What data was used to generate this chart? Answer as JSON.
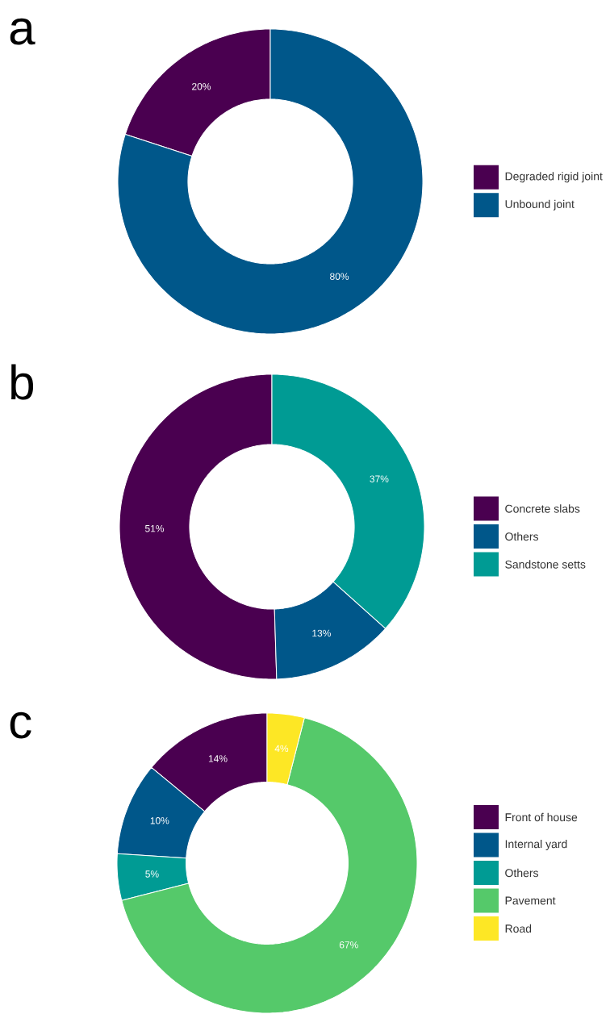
{
  "chart_data": [
    {
      "type": "donut",
      "title": "a",
      "categories": [
        "Degraded rigid joint",
        "Unbound joint"
      ],
      "values": [
        20,
        80
      ],
      "colors": [
        "#4a0050",
        "#00578a"
      ],
      "value_labels": [
        "20%",
        "80%"
      ],
      "legend": "right"
    },
    {
      "type": "donut",
      "title": "b",
      "categories": [
        "Concrete slabs",
        "Others",
        "Sandstone setts"
      ],
      "values": [
        51,
        13,
        37
      ],
      "colors": [
        "#4a0050",
        "#00578a",
        "#009b94"
      ],
      "value_labels": [
        "51%",
        "13%",
        "37%"
      ],
      "legend": "right"
    },
    {
      "type": "donut",
      "title": "c",
      "categories": [
        "Front of house",
        "Internal yard",
        "Others",
        "Pavement",
        "Road"
      ],
      "values": [
        14,
        10,
        5,
        67,
        4
      ],
      "colors": [
        "#4a0050",
        "#00578a",
        "#009b94",
        "#55c96a",
        "#fde725"
      ],
      "value_labels": [
        "14%",
        "10%",
        "5%",
        "67%",
        "4%"
      ],
      "legend": "right"
    }
  ]
}
